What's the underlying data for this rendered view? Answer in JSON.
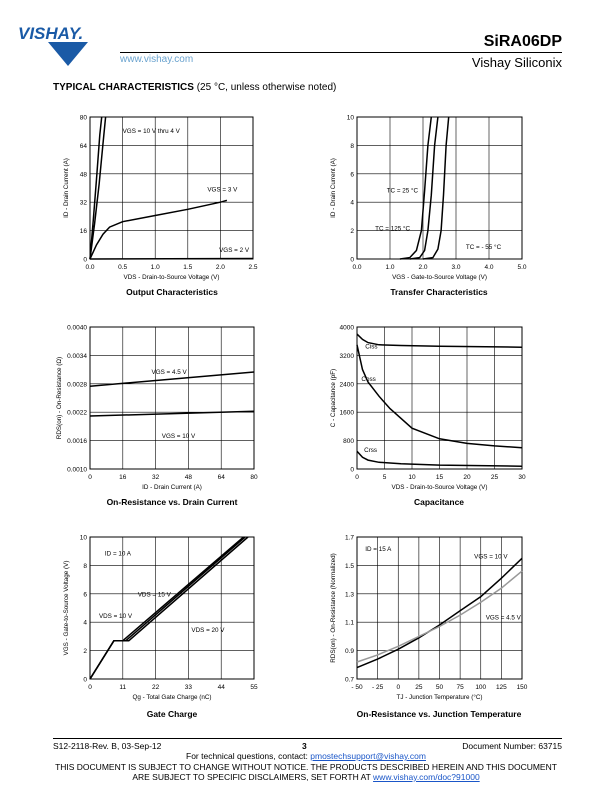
{
  "header": {
    "logo_text": "VISHAY.",
    "website": "www.vishay.com",
    "part_number": "SiRA06DP",
    "company": "Vishay Siliconix"
  },
  "section": {
    "title": "TYPICAL CHARACTERISTICS",
    "subtitle": "(25 °C, unless otherwise noted)"
  },
  "colors": {
    "curve": "#000000",
    "curve_secondary": "#999999",
    "link": "#1a56c8",
    "logo_blue": "#1a5aa6"
  },
  "chart_data": [
    {
      "id": "output",
      "type": "line",
      "title": "Output Characteristics",
      "xlabel": "VDS - Drain-to-Source Voltage (V)",
      "ylabel": "ID - Drain Current (A)",
      "xlim": [
        0,
        2.5
      ],
      "ylim": [
        0,
        80
      ],
      "xticks": [
        "0.0",
        "0.5",
        "1.0",
        "1.5",
        "2.0",
        "2.5"
      ],
      "yticks": [
        "0",
        "16",
        "32",
        "48",
        "64",
        "80"
      ],
      "grid": true,
      "series": [
        {
          "name": "VGS = 10 V thru 4 V",
          "x": [
            0,
            0.05,
            0.1,
            0.15,
            0.18
          ],
          "y": [
            0,
            22,
            45,
            70,
            80
          ]
        },
        {
          "name": "VGS = 10 V thru 4 V",
          "x": [
            0,
            0.07,
            0.14,
            0.2,
            0.24
          ],
          "y": [
            0,
            20,
            42,
            65,
            80
          ]
        },
        {
          "name": "VGS = 3 V",
          "x": [
            0,
            0.1,
            0.2,
            0.3,
            0.5,
            1.0,
            1.5,
            2.0,
            2.1
          ],
          "y": [
            0,
            8,
            14,
            18,
            21,
            24.5,
            28,
            32,
            33
          ]
        },
        {
          "name": "VGS = 2 V",
          "x": [
            0,
            2.5
          ],
          "y": [
            0,
            0.3
          ]
        }
      ],
      "annotations": [
        {
          "text": "VGS = 10 V thru 4 V",
          "x": 0.5,
          "y": 71
        },
        {
          "text": "VGS = 3 V",
          "x": 1.8,
          "y": 38
        },
        {
          "text": "VGS = 2 V",
          "x": 1.98,
          "y": 4
        }
      ]
    },
    {
      "id": "transfer",
      "type": "line",
      "title": "Transfer Characteristics",
      "xlabel": "VGS - Gate-to-Source Voltage (V)",
      "ylabel": "ID - Drain Current (A)",
      "xlim": [
        0,
        5
      ],
      "ylim": [
        0,
        10
      ],
      "xticks": [
        "0.0",
        "1.0",
        "2.0",
        "3.0",
        "4.0",
        "5.0"
      ],
      "yticks": [
        "0",
        "2",
        "4",
        "6",
        "8",
        "10"
      ],
      "grid": true,
      "series": [
        {
          "name": "TC = 25 °C",
          "x": [
            1.6,
            1.9,
            2.05,
            2.15,
            2.25,
            2.35,
            2.45
          ],
          "y": [
            0,
            0.1,
            0.6,
            2,
            4.5,
            8,
            10
          ]
        },
        {
          "name": "TC = 125 °C",
          "x": [
            1.3,
            1.6,
            1.8,
            1.95,
            2.05,
            2.15,
            2.25
          ],
          "y": [
            0,
            0.1,
            0.6,
            2,
            4.8,
            8,
            10
          ]
        },
        {
          "name": "TC = - 55 °C",
          "x": [
            2.0,
            2.3,
            2.45,
            2.55,
            2.62,
            2.7,
            2.78
          ],
          "y": [
            0,
            0.1,
            0.7,
            2,
            4.5,
            8,
            10
          ]
        }
      ],
      "annotations": [
        {
          "text": "TC = 25 °C",
          "x": 0.9,
          "y": 4.7
        },
        {
          "text": "TC = 125 °C",
          "x": 0.55,
          "y": 2.0
        },
        {
          "text": "TC = - 55 °C",
          "x": 3.3,
          "y": 0.7
        }
      ]
    },
    {
      "id": "onres",
      "type": "line",
      "title": "On-Resistance vs. Drain Current",
      "xlabel": "ID - Drain Current (A)",
      "ylabel": "RDS(on) - On-Resistance (Ω)",
      "xlim": [
        0,
        80
      ],
      "ylim": [
        0.001,
        0.004
      ],
      "xticks": [
        "0",
        "16",
        "32",
        "48",
        "64",
        "80"
      ],
      "yticks": [
        "0.0010",
        "0.0016",
        "0.0022",
        "0.0028",
        "0.0034",
        "0.0040"
      ],
      "grid": true,
      "series": [
        {
          "name": "VGS = 4.5 V",
          "x": [
            0,
            80
          ],
          "y": [
            0.00275,
            0.00305
          ]
        },
        {
          "name": "VGS = 10 V",
          "x": [
            0,
            80
          ],
          "y": [
            0.00212,
            0.00222
          ]
        }
      ],
      "annotations": [
        {
          "text": "VGS = 4.5 V",
          "x": 30,
          "y": 0.00301
        },
        {
          "text": "VGS = 10 V",
          "x": 35,
          "y": 0.00165
        }
      ]
    },
    {
      "id": "capacitance",
      "type": "line",
      "title": "Capacitance",
      "xlabel": "VDS - Drain-to-Source Voltage (V)",
      "ylabel": "C - Capacitance (pF)",
      "xlim": [
        0,
        30
      ],
      "ylim": [
        0,
        4000
      ],
      "xticks": [
        "0",
        "5",
        "10",
        "15",
        "20",
        "25",
        "30"
      ],
      "yticks": [
        "0",
        "800",
        "1600",
        "2400",
        "3200",
        "4000"
      ],
      "grid": true,
      "series": [
        {
          "name": "Ciss",
          "x": [
            0,
            1,
            2,
            4,
            8,
            15,
            30
          ],
          "y": [
            3800,
            3650,
            3560,
            3500,
            3480,
            3460,
            3430
          ]
        },
        {
          "name": "Coss",
          "x": [
            0,
            1,
            2,
            4,
            6,
            10,
            15,
            20,
            25,
            30
          ],
          "y": [
            3500,
            2800,
            2450,
            2050,
            1700,
            1150,
            850,
            720,
            650,
            600
          ]
        },
        {
          "name": "Crss",
          "x": [
            0,
            1,
            2,
            4,
            8,
            15,
            30
          ],
          "y": [
            500,
            330,
            250,
            190,
            150,
            110,
            80
          ]
        }
      ],
      "annotations": [
        {
          "text": "Ciss",
          "x": 1.5,
          "y": 3400
        },
        {
          "text": "Coss",
          "x": 0.8,
          "y": 2480
        },
        {
          "text": "Crss",
          "x": 1.3,
          "y": 480
        }
      ]
    },
    {
      "id": "gate",
      "type": "line",
      "title": "Gate Charge",
      "xlabel": "Qg - Total Gate Charge (nC)",
      "ylabel": "VGS - Gate-to-Source Voltage (V)",
      "xlim": [
        0,
        55
      ],
      "ylim": [
        0,
        10
      ],
      "xticks": [
        "0",
        "11",
        "22",
        "33",
        "44",
        "55"
      ],
      "yticks": [
        "0",
        "2",
        "4",
        "6",
        "8",
        "10"
      ],
      "grid": true,
      "series": [
        {
          "name": "VDS = 10 V",
          "x": [
            0,
            8,
            11,
            51.5
          ],
          "y": [
            0,
            2.7,
            2.7,
            10
          ]
        },
        {
          "name": "VDS = 15 V",
          "x": [
            0,
            8,
            12,
            52
          ],
          "y": [
            0,
            2.7,
            2.7,
            10
          ]
        },
        {
          "name": "VDS = 20 V",
          "x": [
            0,
            8,
            13,
            53
          ],
          "y": [
            0,
            2.7,
            2.7,
            10
          ]
        }
      ],
      "annotations": [
        {
          "text": "ID = 10 A",
          "x": 5,
          "y": 8.7
        },
        {
          "text": "VDS = 15 V",
          "x": 16,
          "y": 5.8
        },
        {
          "text": "VDS = 10 V",
          "x": 3,
          "y": 4.3
        },
        {
          "text": "VDS = 20 V",
          "x": 34,
          "y": 3.3
        }
      ]
    },
    {
      "id": "tempres",
      "type": "line",
      "title": "On-Resistance vs. Junction Temperature",
      "xlabel": "TJ - Junction Temperature (°C)",
      "ylabel": "RDS(on) - On-Resistance (Normalized)",
      "xlim": [
        -50,
        150
      ],
      "ylim": [
        0.7,
        1.7
      ],
      "xticks": [
        "- 50",
        "- 25",
        "0",
        "25",
        "50",
        "75",
        "100",
        "125",
        "150"
      ],
      "yticks": [
        "0.7",
        "0.9",
        "1.1",
        "1.3",
        "1.5",
        "1.7"
      ],
      "grid": true,
      "series": [
        {
          "name": "VGS = 10 V",
          "x": [
            -50,
            -25,
            0,
            25,
            50,
            75,
            100,
            125,
            150
          ],
          "y": [
            0.78,
            0.84,
            0.91,
            0.99,
            1.08,
            1.18,
            1.28,
            1.41,
            1.55
          ]
        },
        {
          "name": "VGS = 4.5 V",
          "x": [
            -50,
            -25,
            0,
            25,
            50,
            75,
            100,
            125,
            150
          ],
          "y": [
            0.82,
            0.87,
            0.93,
            1.0,
            1.07,
            1.15,
            1.24,
            1.34,
            1.46
          ]
        }
      ],
      "annotations": [
        {
          "text": "ID = 15 A",
          "x": -40,
          "y": 1.6
        },
        {
          "text": "VGS = 10 V",
          "x": 92,
          "y": 1.55
        },
        {
          "text": "VGS = 4.5 V",
          "x": 106,
          "y": 1.12
        }
      ]
    }
  ],
  "footer": {
    "doc_rev": "S12-2118-Rev. B, 03-Sep-12",
    "page": "3",
    "doc_number": "Document Number: 63715",
    "contact_prefix": "For technical questions, contact: ",
    "contact_email": "pmostechsupport@vishay.com",
    "disclaimer_1": "THIS DOCUMENT IS SUBJECT TO CHANGE WITHOUT NOTICE. THE PRODUCTS DESCRIBED HEREIN AND THIS DOCUMENT",
    "disclaimer_2_prefix": "ARE SUBJECT TO SPECIFIC DISCLAIMERS, SET FORTH AT ",
    "disclaimer_link": "www.vishay.com/doc?91000"
  }
}
